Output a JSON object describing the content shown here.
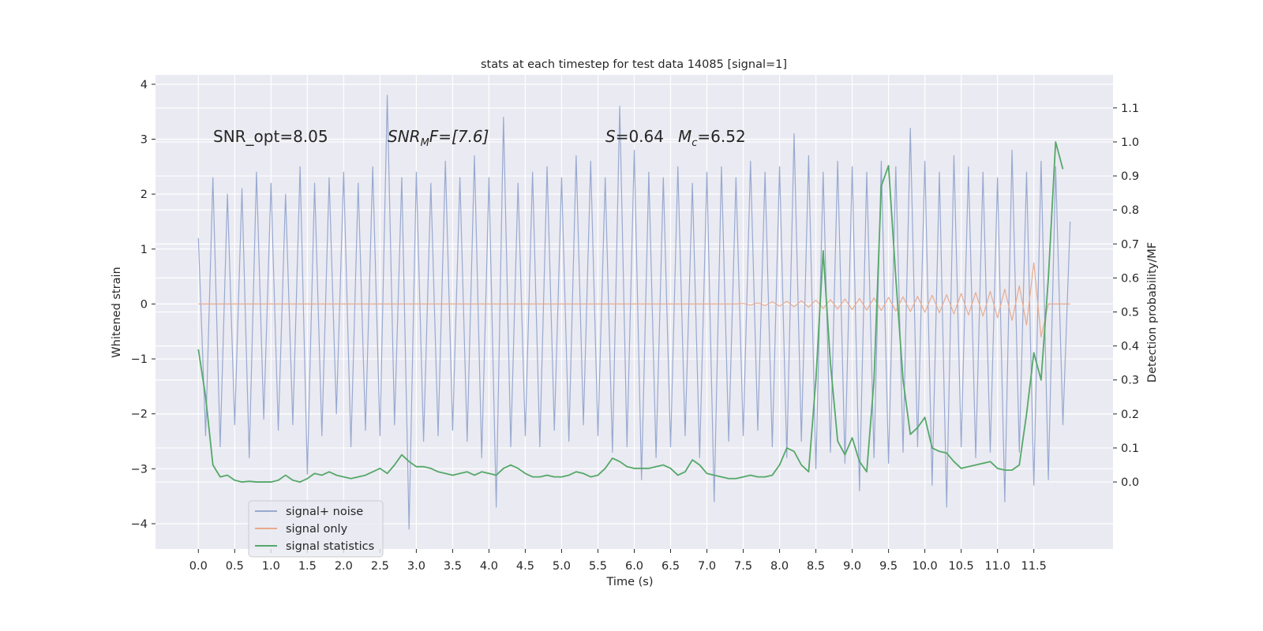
{
  "chart_data": {
    "type": "line",
    "title": "stats at each timestep for test data 14085 [signal=1]",
    "xlabel": "Time (s)",
    "ylabel": "Whitened strain",
    "y2label": "Detection probability/MF",
    "annotations": [
      [
        "SNR_opt=8.05"
      ],
      [
        "SNR",
        "M",
        "F=[7.6]"
      ],
      [
        "S",
        "=0.64"
      ],
      [
        "M",
        "c",
        "=6.52"
      ]
    ],
    "grid": true,
    "legend": "lower left",
    "xlim": [
      -0.59,
      12.59
    ],
    "ylim": [
      -4.46,
      4.17
    ],
    "y2lim": [
      -0.197,
      1.197
    ],
    "xticks": [
      {
        "value": 0,
        "label": "0.0"
      },
      0.5,
      {
        "value": 1,
        "label": "1.0"
      },
      1.5,
      {
        "value": 2,
        "label": "2.0"
      },
      2.5,
      {
        "value": 3,
        "label": "3.0"
      },
      3.5,
      {
        "value": 4,
        "label": "4.0"
      },
      4.5,
      {
        "value": 5,
        "label": "5.0"
      },
      5.5,
      {
        "value": 6,
        "label": "6.0"
      },
      6.5,
      {
        "value": 7,
        "label": "7.0"
      },
      7.5,
      {
        "value": 8,
        "label": "8.0"
      },
      8.5,
      {
        "value": 9,
        "label": "9.0"
      },
      9.5,
      {
        "value": 10,
        "label": "10.0"
      },
      10.5,
      {
        "value": 11,
        "label": "11.0"
      },
      11.5
    ],
    "yticks": [
      {
        "value": -4,
        "label": "−4"
      },
      {
        "value": -3,
        "label": "−3"
      },
      {
        "value": -2,
        "label": "−2"
      },
      {
        "value": -1,
        "label": "−1"
      },
      0,
      1,
      2,
      3,
      4
    ],
    "y2ticks": [
      {
        "value": 0,
        "label": "0.0"
      },
      0.1,
      0.2,
      0.3,
      0.4,
      0.5,
      0.6,
      0.7,
      0.8,
      0.9,
      {
        "value": 1,
        "label": "1.0"
      },
      1.1
    ],
    "x": [
      0,
      0.1,
      0.2,
      0.3,
      0.4,
      0.5,
      0.6,
      0.7,
      0.8,
      0.9,
      1,
      1.1,
      1.2,
      1.3,
      1.4,
      1.5,
      1.6,
      1.7,
      1.8,
      1.9,
      2,
      2.1,
      2.2,
      2.3,
      2.4,
      2.5,
      2.6,
      2.7,
      2.8,
      2.9,
      3,
      3.1,
      3.2,
      3.3,
      3.4,
      3.5,
      3.6,
      3.7,
      3.8,
      3.9,
      4,
      4.1,
      4.2,
      4.3,
      4.4,
      4.5,
      4.6,
      4.7,
      4.8,
      4.9,
      5,
      5.1,
      5.2,
      5.3,
      5.4,
      5.5,
      5.6,
      5.7,
      5.8,
      5.9,
      6,
      6.1,
      6.2,
      6.3,
      6.4,
      6.5,
      6.6,
      6.7,
      6.8,
      6.9,
      7,
      7.1,
      7.2,
      7.3,
      7.4,
      7.5,
      7.6,
      7.7,
      7.8,
      7.9,
      8,
      8.1,
      8.2,
      8.3,
      8.4,
      8.5,
      8.6,
      8.7,
      8.8,
      8.9,
      9,
      9.1,
      9.2,
      9.3,
      9.4,
      9.5,
      9.6,
      9.7,
      9.8,
      9.9,
      10,
      10.1,
      10.2,
      10.3,
      10.4,
      10.5,
      10.6,
      10.7,
      10.8,
      10.9,
      11,
      11.1,
      11.2,
      11.3,
      11.4,
      11.5,
      11.6,
      11.7,
      11.8,
      11.9,
      12
    ],
    "series": [
      {
        "name": "signal+ noise",
        "color": "#98a9d0",
        "values": [
          1.2,
          -2.4,
          2.3,
          -2.6,
          2.0,
          -2.2,
          2.1,
          -2.8,
          2.4,
          -2.1,
          2.2,
          -2.3,
          2.0,
          -2.2,
          2.5,
          -3.1,
          2.2,
          -2.4,
          2.3,
          -2.0,
          2.4,
          -2.6,
          2.2,
          -2.3,
          2.5,
          -2.4,
          3.8,
          -2.2,
          2.3,
          -4.1,
          2.4,
          -2.5,
          2.2,
          -2.4,
          2.6,
          -2.3,
          2.3,
          -2.5,
          2.7,
          -2.8,
          2.3,
          -3.7,
          3.4,
          -2.6,
          2.2,
          -2.4,
          2.4,
          -2.6,
          2.5,
          -2.3,
          2.3,
          -2.5,
          2.7,
          -2.2,
          2.6,
          -2.4,
          2.3,
          -2.7,
          3.6,
          -2.6,
          2.8,
          -3.2,
          2.4,
          -2.8,
          2.3,
          -2.6,
          2.5,
          -2.4,
          2.2,
          -2.8,
          2.4,
          -3.6,
          2.5,
          -2.5,
          2.3,
          -2.4,
          2.6,
          -2.3,
          2.4,
          -2.6,
          2.5,
          -2.8,
          3.1,
          -2.5,
          2.7,
          -3.0,
          2.4,
          -2.7,
          2.6,
          -2.9,
          2.5,
          -3.4,
          2.4,
          -2.8,
          2.6,
          -2.9,
          2.5,
          -2.7,
          3.2,
          -2.6,
          2.6,
          -3.3,
          2.4,
          -3.7,
          2.7,
          -2.6,
          2.5,
          -2.8,
          2.4,
          -2.7,
          2.3,
          -3.6,
          2.8,
          -2.7,
          2.4,
          -3.3,
          2.6,
          -3.2,
          2.5,
          -2.2,
          1.5
        ]
      },
      {
        "name": "signal only",
        "color": "#e8ab8e",
        "values": [
          0,
          0,
          0,
          0,
          0,
          0,
          0,
          0,
          0,
          0,
          0,
          0,
          0,
          0,
          0,
          0,
          0,
          0,
          0,
          0,
          0,
          0,
          0,
          0,
          0,
          0,
          0,
          0,
          0,
          0,
          0,
          0,
          0,
          0,
          0,
          0,
          0,
          0,
          0,
          0,
          0,
          0,
          0,
          0,
          0,
          0,
          0,
          0,
          0,
          0,
          0,
          0,
          0,
          0,
          0,
          0,
          0,
          0,
          0,
          0,
          0,
          0,
          0,
          0,
          0,
          0,
          0,
          0,
          0,
          0,
          0,
          0,
          0,
          0,
          0,
          0.01,
          -0.02,
          0.02,
          -0.03,
          0.04,
          -0.04,
          0.05,
          -0.05,
          0.06,
          -0.06,
          0.07,
          -0.08,
          0.08,
          -0.09,
          0.09,
          -0.1,
          0.1,
          -0.11,
          0.11,
          -0.12,
          0.12,
          -0.13,
          0.13,
          -0.14,
          0.14,
          -0.15,
          0.16,
          -0.16,
          0.17,
          -0.18,
          0.19,
          -0.2,
          0.21,
          -0.22,
          0.23,
          -0.25,
          0.27,
          -0.3,
          0.33,
          -0.38,
          0.75,
          -0.6,
          0,
          0,
          0,
          0
        ]
      },
      {
        "name": "signal statistics",
        "color": "#55a868",
        "axis": "y2",
        "values": [
          0.39,
          0.25,
          0.05,
          0.015,
          0.02,
          0.005,
          0,
          0.002,
          0,
          0,
          0,
          0.005,
          0.02,
          0.005,
          0,
          0.01,
          0.025,
          0.02,
          0.03,
          0.02,
          0.015,
          0.01,
          0.015,
          0.02,
          0.03,
          0.04,
          0.025,
          0.05,
          0.08,
          0.06,
          0.045,
          0.045,
          0.04,
          0.03,
          0.025,
          0.02,
          0.025,
          0.03,
          0.02,
          0.03,
          0.025,
          0.02,
          0.04,
          0.05,
          0.04,
          0.025,
          0.015,
          0.015,
          0.02,
          0.015,
          0.015,
          0.02,
          0.03,
          0.025,
          0.015,
          0.02,
          0.04,
          0.07,
          0.06,
          0.045,
          0.04,
          0.04,
          0.04,
          0.045,
          0.05,
          0.04,
          0.02,
          0.03,
          0.065,
          0.05,
          0.025,
          0.02,
          0.015,
          0.01,
          0.01,
          0.015,
          0.02,
          0.015,
          0.015,
          0.02,
          0.05,
          0.1,
          0.09,
          0.05,
          0.03,
          0.3,
          0.68,
          0.35,
          0.12,
          0.08,
          0.13,
          0.06,
          0.03,
          0.3,
          0.87,
          0.93,
          0.6,
          0.3,
          0.14,
          0.16,
          0.19,
          0.1,
          0.09,
          0.085,
          0.06,
          0.04,
          0.045,
          0.05,
          0.055,
          0.06,
          0.04,
          0.035,
          0.035,
          0.05,
          0.2,
          0.38,
          0.3,
          0.6,
          1.0,
          0.92,
          null
        ]
      }
    ]
  }
}
